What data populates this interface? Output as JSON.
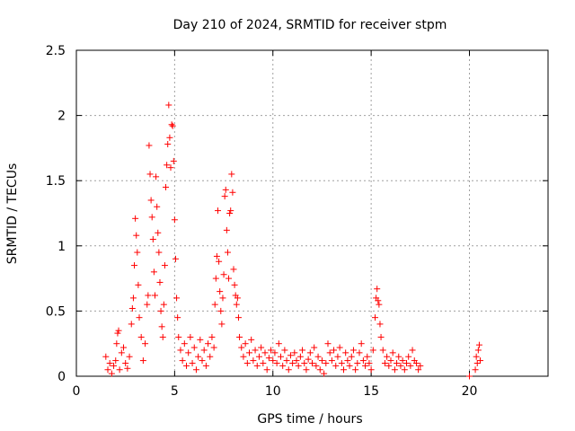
{
  "chart_data": {
    "type": "scatter",
    "title": "Day 210 of 2024, SRMTID for receiver stpm",
    "xlabel": "GPS time / hours",
    "ylabel": "SRMTID / TECUs",
    "xlim": [
      0,
      24
    ],
    "ylim": [
      0,
      2.5
    ],
    "xticks": [
      0,
      5,
      10,
      15,
      20
    ],
    "xtick_labels": [
      "0",
      "5",
      "10",
      "15",
      "20"
    ],
    "yticks": [
      0,
      0.5,
      1,
      1.5,
      2,
      2.5
    ],
    "ytick_labels": [
      "0",
      "0.5",
      "1",
      "1.5",
      "2",
      "2.5"
    ],
    "grid": true,
    "marker": "+",
    "series": [
      {
        "name": "SRMTID",
        "color": "#ff0000",
        "points": [
          [
            1.5,
            0.15
          ],
          [
            1.6,
            0.05
          ],
          [
            1.7,
            0.1
          ],
          [
            1.8,
            0.02
          ],
          [
            1.9,
            0.08
          ],
          [
            2.0,
            0.12
          ],
          [
            2.05,
            0.25
          ],
          [
            2.1,
            0.33
          ],
          [
            2.15,
            0.35
          ],
          [
            2.2,
            0.05
          ],
          [
            2.3,
            0.18
          ],
          [
            2.4,
            0.22
          ],
          [
            2.5,
            0.1
          ],
          [
            2.6,
            0.06
          ],
          [
            2.7,
            0.15
          ],
          [
            2.8,
            0.4
          ],
          [
            2.85,
            0.52
          ],
          [
            2.9,
            0.6
          ],
          [
            2.95,
            0.85
          ],
          [
            3.0,
            1.21
          ],
          [
            3.05,
            1.08
          ],
          [
            3.1,
            0.95
          ],
          [
            3.15,
            0.7
          ],
          [
            3.2,
            0.45
          ],
          [
            3.3,
            0.3
          ],
          [
            3.4,
            0.12
          ],
          [
            3.5,
            0.25
          ],
          [
            3.6,
            0.55
          ],
          [
            3.65,
            0.62
          ],
          [
            3.7,
            1.77
          ],
          [
            3.75,
            1.55
          ],
          [
            3.8,
            1.35
          ],
          [
            3.85,
            1.22
          ],
          [
            3.9,
            1.05
          ],
          [
            3.95,
            0.8
          ],
          [
            4.0,
            0.62
          ],
          [
            4.05,
            1.53
          ],
          [
            4.1,
            1.3
          ],
          [
            4.15,
            1.1
          ],
          [
            4.2,
            0.95
          ],
          [
            4.25,
            0.72
          ],
          [
            4.3,
            0.5
          ],
          [
            4.35,
            0.38
          ],
          [
            4.4,
            0.3
          ],
          [
            4.45,
            0.55
          ],
          [
            4.5,
            0.85
          ],
          [
            4.55,
            1.45
          ],
          [
            4.6,
            1.62
          ],
          [
            4.65,
            1.78
          ],
          [
            4.7,
            2.08
          ],
          [
            4.75,
            1.83
          ],
          [
            4.8,
            1.6
          ],
          [
            4.85,
            1.93
          ],
          [
            4.9,
            1.92
          ],
          [
            4.95,
            1.65
          ],
          [
            5.0,
            1.2
          ],
          [
            5.05,
            0.9
          ],
          [
            5.1,
            0.6
          ],
          [
            5.15,
            0.45
          ],
          [
            5.2,
            0.3
          ],
          [
            5.3,
            0.2
          ],
          [
            5.4,
            0.12
          ],
          [
            5.5,
            0.25
          ],
          [
            5.6,
            0.08
          ],
          [
            5.7,
            0.18
          ],
          [
            5.8,
            0.3
          ],
          [
            5.9,
            0.1
          ],
          [
            6.0,
            0.22
          ],
          [
            6.1,
            0.05
          ],
          [
            6.2,
            0.15
          ],
          [
            6.3,
            0.28
          ],
          [
            6.4,
            0.12
          ],
          [
            6.5,
            0.2
          ],
          [
            6.6,
            0.08
          ],
          [
            6.7,
            0.25
          ],
          [
            6.8,
            0.15
          ],
          [
            6.9,
            0.3
          ],
          [
            7.0,
            0.22
          ],
          [
            7.05,
            0.55
          ],
          [
            7.1,
            0.75
          ],
          [
            7.15,
            0.92
          ],
          [
            7.2,
            1.27
          ],
          [
            7.25,
            0.88
          ],
          [
            7.3,
            0.65
          ],
          [
            7.35,
            0.5
          ],
          [
            7.4,
            0.4
          ],
          [
            7.45,
            0.6
          ],
          [
            7.5,
            0.78
          ],
          [
            7.55,
            1.38
          ],
          [
            7.6,
            1.43
          ],
          [
            7.65,
            1.12
          ],
          [
            7.7,
            0.95
          ],
          [
            7.75,
            0.75
          ],
          [
            7.8,
            1.25
          ],
          [
            7.85,
            1.27
          ],
          [
            7.9,
            1.55
          ],
          [
            7.95,
            1.41
          ],
          [
            8.0,
            0.82
          ],
          [
            8.05,
            0.7
          ],
          [
            8.1,
            0.62
          ],
          [
            8.15,
            0.55
          ],
          [
            8.2,
            0.6
          ],
          [
            8.25,
            0.45
          ],
          [
            8.3,
            0.3
          ],
          [
            8.4,
            0.22
          ],
          [
            8.5,
            0.15
          ],
          [
            8.6,
            0.25
          ],
          [
            8.7,
            0.1
          ],
          [
            8.8,
            0.18
          ],
          [
            8.9,
            0.28
          ],
          [
            9.0,
            0.12
          ],
          [
            9.1,
            0.2
          ],
          [
            9.2,
            0.08
          ],
          [
            9.3,
            0.15
          ],
          [
            9.4,
            0.22
          ],
          [
            9.5,
            0.1
          ],
          [
            9.6,
            0.18
          ],
          [
            9.7,
            0.05
          ],
          [
            9.8,
            0.14
          ],
          [
            9.9,
            0.2
          ],
          [
            10.0,
            0.12
          ],
          [
            10.1,
            0.18
          ],
          [
            10.2,
            0.1
          ],
          [
            10.3,
            0.25
          ],
          [
            10.4,
            0.15
          ],
          [
            10.5,
            0.08
          ],
          [
            10.6,
            0.2
          ],
          [
            10.7,
            0.12
          ],
          [
            10.8,
            0.05
          ],
          [
            10.9,
            0.16
          ],
          [
            11.0,
            0.1
          ],
          [
            11.1,
            0.18
          ],
          [
            11.2,
            0.12
          ],
          [
            11.3,
            0.08
          ],
          [
            11.4,
            0.15
          ],
          [
            11.5,
            0.2
          ],
          [
            11.6,
            0.1
          ],
          [
            11.7,
            0.05
          ],
          [
            11.8,
            0.13
          ],
          [
            11.9,
            0.18
          ],
          [
            12.0,
            0.1
          ],
          [
            12.1,
            0.22
          ],
          [
            12.2,
            0.08
          ],
          [
            12.3,
            0.15
          ],
          [
            12.4,
            0.05
          ],
          [
            12.5,
            0.12
          ],
          [
            12.6,
            0.02
          ],
          [
            12.7,
            0.1
          ],
          [
            12.8,
            0.25
          ],
          [
            12.9,
            0.18
          ],
          [
            13.0,
            0.12
          ],
          [
            13.1,
            0.2
          ],
          [
            13.2,
            0.08
          ],
          [
            13.3,
            0.15
          ],
          [
            13.4,
            0.22
          ],
          [
            13.5,
            0.1
          ],
          [
            13.6,
            0.05
          ],
          [
            13.7,
            0.18
          ],
          [
            13.8,
            0.12
          ],
          [
            13.9,
            0.08
          ],
          [
            14.0,
            0.15
          ],
          [
            14.1,
            0.2
          ],
          [
            14.2,
            0.05
          ],
          [
            14.3,
            0.1
          ],
          [
            14.4,
            0.18
          ],
          [
            14.5,
            0.25
          ],
          [
            14.6,
            0.12
          ],
          [
            14.7,
            0.08
          ],
          [
            14.8,
            0.15
          ],
          [
            14.9,
            0.1
          ],
          [
            15.0,
            0.05
          ],
          [
            15.1,
            0.2
          ],
          [
            15.2,
            0.45
          ],
          [
            15.25,
            0.6
          ],
          [
            15.3,
            0.67
          ],
          [
            15.35,
            0.58
          ],
          [
            15.4,
            0.55
          ],
          [
            15.45,
            0.4
          ],
          [
            15.5,
            0.3
          ],
          [
            15.6,
            0.2
          ],
          [
            15.7,
            0.1
          ],
          [
            15.8,
            0.15
          ],
          [
            15.9,
            0.08
          ],
          [
            16.0,
            0.12
          ],
          [
            16.1,
            0.18
          ],
          [
            16.2,
            0.05
          ],
          [
            16.3,
            0.1
          ],
          [
            16.4,
            0.15
          ],
          [
            16.5,
            0.08
          ],
          [
            16.6,
            0.12
          ],
          [
            16.7,
            0.05
          ],
          [
            16.8,
            0.1
          ],
          [
            16.9,
            0.15
          ],
          [
            17.0,
            0.08
          ],
          [
            17.1,
            0.2
          ],
          [
            17.2,
            0.12
          ],
          [
            17.3,
            0.1
          ],
          [
            17.4,
            0.05
          ],
          [
            17.5,
            0.08
          ],
          [
            20.0,
            0.0
          ],
          [
            20.3,
            0.05
          ],
          [
            20.35,
            0.15
          ],
          [
            20.4,
            0.1
          ],
          [
            20.45,
            0.2
          ],
          [
            20.5,
            0.24
          ],
          [
            20.55,
            0.12
          ]
        ]
      }
    ]
  }
}
